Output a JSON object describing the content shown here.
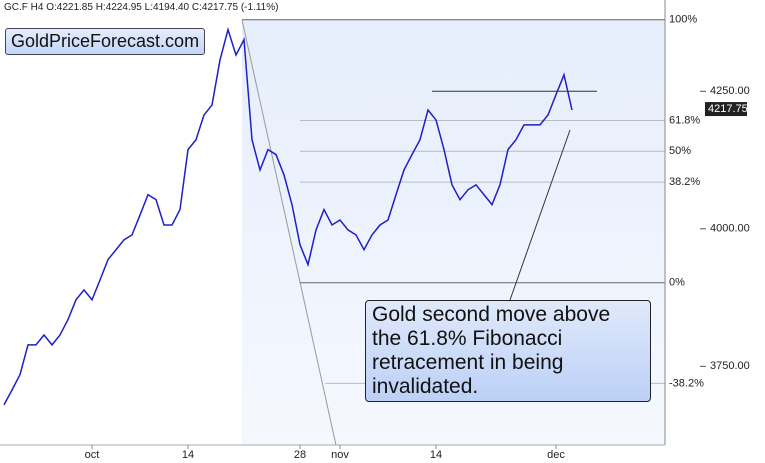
{
  "header": "GC.F  H4  O:4221.85  H:4224.95  L:4194.40  C:4217.75  (-1.11%)",
  "watermark": "GoldPriceForecast.com",
  "chart_data": {
    "type": "line",
    "categories": [
      null,
      null,
      null,
      null,
      null,
      null,
      null,
      null,
      null,
      null,
      null,
      "oct",
      null,
      null,
      null,
      null,
      null,
      null,
      null,
      null,
      null,
      null,
      null,
      "14",
      null,
      null,
      null,
      null,
      null,
      null,
      null,
      null,
      null,
      null,
      null,
      null,
      null,
      "28",
      null,
      null,
      null,
      null,
      "nov",
      null,
      null,
      null,
      null,
      null,
      null,
      null,
      null,
      null,
      null,
      null,
      "14",
      null,
      null,
      null,
      null,
      null,
      null,
      null,
      null,
      null,
      null,
      null,
      null,
      null,
      null,
      "dec",
      null,
      null
    ],
    "values": [
      3680,
      3707,
      3735,
      3789,
      3789,
      3807,
      3789,
      3807,
      3835,
      3871,
      3889,
      3871,
      3907,
      3944,
      3962,
      3980,
      3989,
      4025,
      4062,
      4053,
      4007,
      4007,
      4035,
      4144,
      4162,
      4207,
      4225,
      4307,
      4362,
      4316,
      4344,
      4162,
      4107,
      4144,
      4135,
      4098,
      4044,
      3971,
      3935,
      3998,
      4035,
      4007,
      4016,
      3998,
      3989,
      3962,
      3989,
      4007,
      4016,
      4062,
      4107,
      4135,
      4162,
      4216,
      4198,
      4144,
      4080,
      4053,
      4071,
      4080,
      4062,
      4044,
      4080,
      4144,
      4162,
      4189,
      4189,
      4189,
      4207,
      4244,
      4280,
      4216
    ],
    "color": "#1f1fc8",
    "ylim": [
      3607,
      4416
    ],
    "yticks": [
      {
        "value": 4250,
        "label": "4250.00"
      },
      {
        "value": 4000,
        "label": "4000.00"
      },
      {
        "value": 3750,
        "label": "3750.00"
      }
    ],
    "last_price": {
      "value": 4217.75,
      "label": "4217.75"
    },
    "fibonacci": [
      {
        "value": 4380,
        "label": "100%"
      },
      {
        "value": 4197,
        "label": "61.8%"
      },
      {
        "value": 4141,
        "label": "50%"
      },
      {
        "value": 4085,
        "label": "38.2%"
      },
      {
        "value": 3902,
        "label": "0%"
      },
      {
        "value": 3719,
        "label": "-38.2%"
      }
    ],
    "resistance": {
      "value": 4250
    },
    "annotation": "Gold second move above the 61.8% Fibonacci retracement in being invalidated."
  }
}
